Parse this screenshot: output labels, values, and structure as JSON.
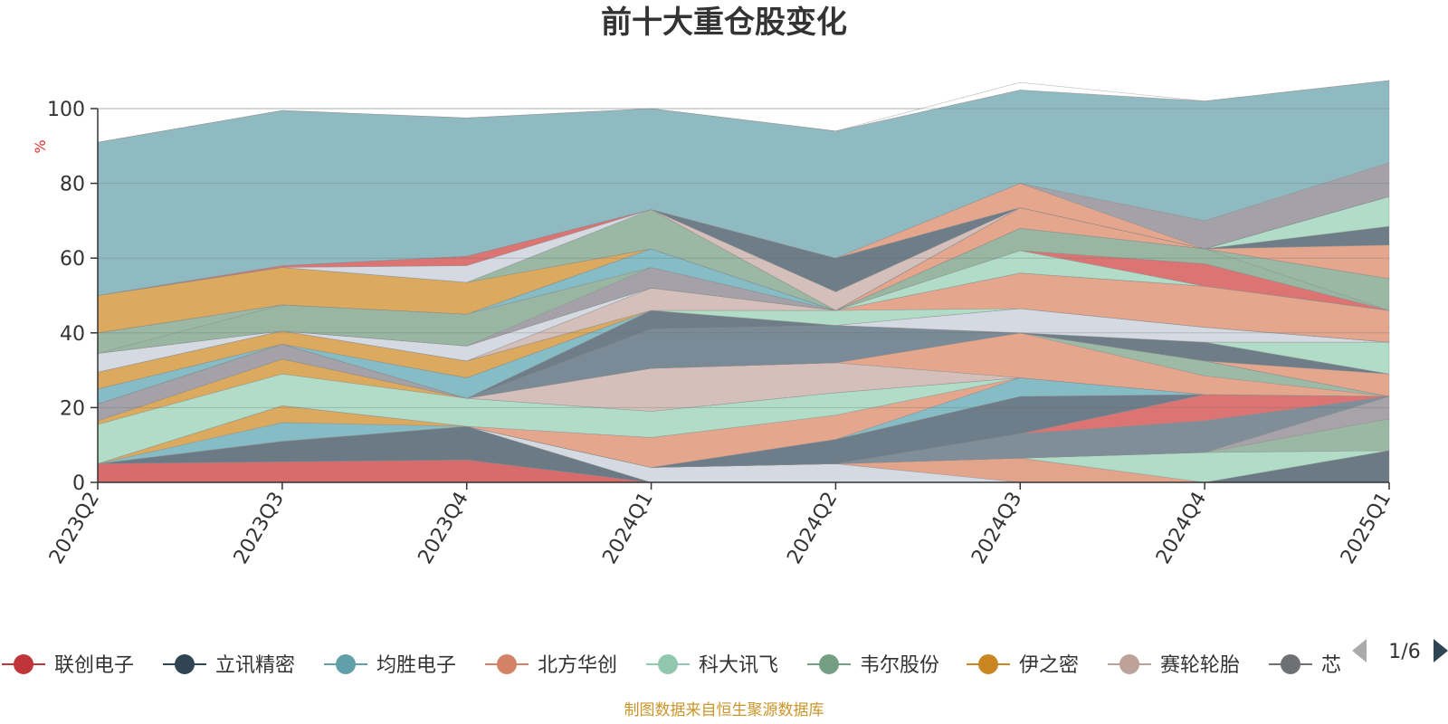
{
  "chart_data": {
    "type": "area",
    "stacked": true,
    "title": "前十大重仓股变化",
    "y_unit": "%",
    "ylim": [
      0,
      100
    ],
    "yticks": [
      0,
      20,
      40,
      60,
      80,
      100
    ],
    "grid": true,
    "categories": [
      "2023Q2",
      "2023Q3",
      "2023Q4",
      "2024Q1",
      "2024Q2",
      "2024Q3",
      "2024Q4",
      "2025Q1"
    ],
    "series": [
      {
        "name": "联创电子",
        "color": "#d86b6b",
        "values": [
          5,
          5.5,
          6,
          0,
          0,
          0,
          0,
          0
        ]
      },
      {
        "name": "立讯精密",
        "color": "#6c7a86",
        "values": [
          0,
          5.5,
          9,
          0,
          0,
          0,
          0,
          8.5
        ]
      },
      {
        "name": "",
        "color": "#d5dae2",
        "values": [
          0,
          0,
          0,
          4,
          5,
          0,
          0,
          0
        ]
      },
      {
        "name": "",
        "color": "#e3a48c",
        "values": [
          0,
          0,
          0,
          0,
          0,
          6.5,
          0,
          0
        ]
      },
      {
        "name": "科大讯飞",
        "color": "#b0dcc8",
        "values": [
          0,
          0,
          0,
          0,
          0,
          0,
          8,
          0
        ]
      },
      {
        "name": "",
        "color": "#9ab8a4",
        "values": [
          0,
          0,
          0,
          0,
          0,
          0,
          0,
          8.5
        ]
      },
      {
        "name": "",
        "color": "#a8a3a8",
        "values": [
          0,
          0,
          0,
          0,
          0,
          0,
          0,
          6
        ]
      },
      {
        "name": "",
        "color": "#7f8e98",
        "values": [
          0,
          0,
          0,
          0,
          0,
          6.5,
          8.5,
          0
        ]
      },
      {
        "name": "",
        "color": "#dc7474",
        "values": [
          0,
          0,
          0,
          0,
          0,
          0,
          7,
          0
        ]
      },
      {
        "name": "",
        "color": "#6e7d8a",
        "values": [
          0,
          0,
          0,
          0,
          6.5,
          10,
          0,
          0
        ]
      },
      {
        "name": "均胜电子",
        "color": "#86bcc6",
        "values": [
          0,
          5,
          0,
          0,
          0,
          5,
          0,
          0
        ]
      },
      {
        "name": "伊之密",
        "color": "#dcaa5f",
        "values": [
          0,
          4.5,
          0,
          0,
          0,
          0,
          0,
          0
        ]
      },
      {
        "name": "北方华创",
        "color": "#e5a68e",
        "values": [
          0,
          0,
          0,
          8,
          6.5,
          0,
          0,
          0
        ]
      },
      {
        "name": "科大讯飞",
        "color": "#b0dcc8",
        "values": [
          10.5,
          8.5,
          7.5,
          7,
          6,
          0,
          0,
          0
        ]
      },
      {
        "name": "伊之密",
        "color": "#dcaa5f",
        "values": [
          1,
          4,
          0,
          0,
          0,
          0,
          0,
          0
        ]
      },
      {
        "name": "赛轮轮胎",
        "color": "#d5bfba",
        "values": [
          0,
          0,
          0,
          11.5,
          8,
          0,
          0,
          0
        ]
      },
      {
        "name": "",
        "color": "#e5a68e",
        "values": [
          0,
          0,
          0,
          0,
          0,
          12,
          5,
          0
        ]
      },
      {
        "name": "",
        "color": "#9dbaa6",
        "values": [
          0,
          0,
          0,
          0,
          0,
          0,
          4,
          0
        ]
      },
      {
        "name": "芯",
        "color": "#a4a2a8",
        "values": [
          4.5,
          4,
          0,
          0,
          0,
          0,
          0,
          0
        ]
      },
      {
        "name": "",
        "color": "#7a8a96",
        "values": [
          0,
          0,
          0,
          10.5,
          10,
          0,
          0,
          0
        ]
      },
      {
        "name": "",
        "color": "#6e7d88",
        "values": [
          0,
          0,
          0,
          5,
          0,
          0,
          0,
          0
        ]
      },
      {
        "name": "北方华创",
        "color": "#e5a68e",
        "values": [
          0,
          0,
          0,
          0,
          0,
          0,
          0,
          6
        ]
      },
      {
        "name": "",
        "color": "#6e7d88",
        "values": [
          0,
          0,
          0,
          0,
          0,
          0,
          5,
          0
        ]
      },
      {
        "name": "",
        "color": "#b0dcc8",
        "values": [
          0,
          0,
          0,
          0,
          0,
          0,
          0,
          8.5
        ]
      },
      {
        "name": "均胜电子",
        "color": "#86bcc6",
        "values": [
          4,
          0,
          5.5,
          0,
          0,
          0,
          0,
          0
        ]
      },
      {
        "name": "",
        "color": "#d5dae2",
        "values": [
          0,
          0,
          0,
          0,
          0,
          6.5,
          4,
          0
        ]
      },
      {
        "name": "",
        "color": "#7d8b96",
        "values": [
          0,
          0,
          0,
          0,
          0,
          0,
          0,
          0
        ]
      },
      {
        "name": "伊之密",
        "color": "#dcaa5f",
        "values": [
          4.5,
          3.5,
          4.5,
          0,
          0,
          0,
          0,
          0
        ]
      },
      {
        "name": "",
        "color": "#b0dcc8",
        "values": [
          0,
          0,
          0,
          0,
          4,
          0,
          0,
          0
        ]
      },
      {
        "name": "",
        "color": "#e5a68e",
        "values": [
          0,
          0,
          0,
          0,
          0,
          9.5,
          11,
          8.5
        ]
      },
      {
        "name": "赛轮轮胎",
        "color": "#d5bfba",
        "values": [
          0,
          0,
          0,
          6,
          0,
          0,
          0,
          0
        ]
      },
      {
        "name": "",
        "color": "#d5dae2",
        "values": [
          5,
          0,
          4,
          0,
          0,
          0,
          0,
          0
        ]
      },
      {
        "name": "",
        "color": "#b0dcc8",
        "values": [
          0,
          0,
          0,
          0,
          0,
          6,
          0,
          0
        ]
      },
      {
        "name": "",
        "color": "#dc7474",
        "values": [
          0,
          0,
          0,
          0,
          0,
          0,
          6,
          0
        ]
      },
      {
        "name": "",
        "color": "#a4a2a8",
        "values": [
          0,
          0,
          0,
          5.5,
          0,
          0,
          0,
          0
        ]
      },
      {
        "name": "",
        "color": "#98b6a2",
        "values": [
          0,
          7,
          8.5,
          0,
          0,
          6,
          4,
          0
        ]
      },
      {
        "name": "",
        "color": "#9ab8a4",
        "values": [
          5.5,
          0,
          0,
          0,
          0,
          0,
          0,
          8.5
        ]
      },
      {
        "name": "",
        "color": "#86bcc6",
        "values": [
          0,
          0,
          0,
          5,
          0,
          0,
          0,
          0
        ]
      },
      {
        "name": "",
        "color": "#d5dae2",
        "values": [
          0,
          0,
          0,
          0,
          0,
          0,
          0,
          0
        ]
      },
      {
        "name": "",
        "color": "#e5a68e",
        "values": [
          0,
          0,
          0,
          0,
          0,
          5.5,
          0,
          9
        ]
      },
      {
        "name": "",
        "color": "#6e7d88",
        "values": [
          0,
          0,
          0,
          0,
          0,
          0,
          0,
          5
        ]
      },
      {
        "name": "伊之密",
        "color": "#dcaa5f",
        "values": [
          10,
          10,
          8.5,
          0,
          0,
          0,
          0,
          0
        ]
      },
      {
        "name": "",
        "color": "#b0dcc8",
        "values": [
          0,
          0,
          0,
          0,
          0,
          0,
          0,
          0
        ]
      },
      {
        "name": "",
        "color": "#b0dcc8",
        "values": [
          0,
          0,
          0,
          0,
          0,
          0,
          0,
          8
        ]
      },
      {
        "name": "",
        "color": "#9ab8a4",
        "values": [
          0,
          0,
          0,
          10.5,
          0,
          0,
          0,
          0
        ]
      },
      {
        "name": "",
        "color": "#d5dae2",
        "values": [
          0,
          0,
          4.5,
          0,
          0,
          0,
          0,
          0
        ]
      },
      {
        "name": "",
        "color": "#dc7474",
        "values": [
          0,
          0.5,
          2.5,
          0,
          0,
          0,
          0,
          0
        ]
      },
      {
        "name": "",
        "color": "#d5bfba",
        "values": [
          0,
          0,
          0,
          0,
          5,
          0,
          0,
          0
        ]
      },
      {
        "name": "",
        "color": "#6e7d88",
        "values": [
          0,
          0,
          0,
          0,
          9,
          0,
          0,
          0
        ]
      },
      {
        "name": "",
        "color": "#e5a68e",
        "values": [
          0,
          0,
          0,
          0,
          0,
          6.5,
          0,
          0
        ]
      },
      {
        "name": "",
        "color": "#a4a2a8",
        "values": [
          0,
          0,
          0,
          0,
          0,
          0,
          7.5,
          9
        ]
      },
      {
        "name": "",
        "color": "#90bac1",
        "values": [
          41,
          41.5,
          37,
          27,
          34,
          25,
          32,
          22
        ]
      },
      {
        "name": "",
        "color": "#ffffff",
        "values": [
          0,
          0,
          0,
          0,
          0,
          2,
          0,
          0
        ]
      }
    ],
    "legend": {
      "placement": "bottom",
      "items": [
        {
          "name": "联创电子",
          "color": "#c0353a"
        },
        {
          "name": "立讯精密",
          "color": "#2f4554"
        },
        {
          "name": "均胜电子",
          "color": "#61a0a8"
        },
        {
          "name": "北方华创",
          "color": "#d48265"
        },
        {
          "name": "科大讯飞",
          "color": "#91c7ae"
        },
        {
          "name": "韦尔股份",
          "color": "#749f83"
        },
        {
          "name": "伊之密",
          "color": "#ca8622"
        },
        {
          "name": "赛轮轮胎",
          "color": "#bda29a"
        },
        {
          "name": "芯",
          "color": "#6e7074"
        }
      ],
      "page": "1/6"
    },
    "footer": "制图数据来自恒生聚源数据库"
  }
}
